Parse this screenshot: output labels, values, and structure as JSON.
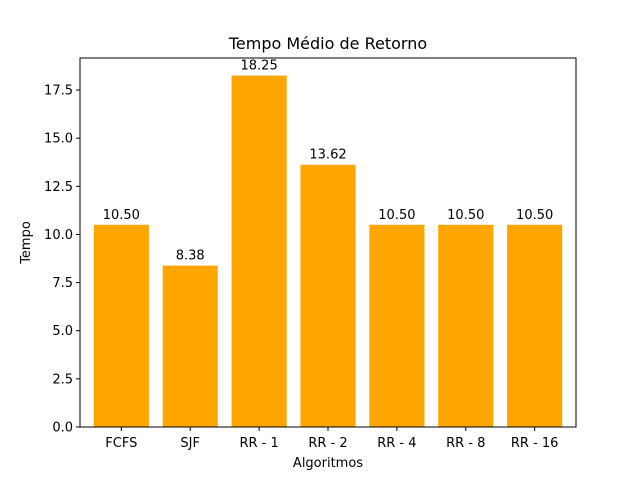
{
  "chart_data": {
    "type": "bar",
    "title": "Tempo Médio de Retorno",
    "xlabel": "Algoritmos",
    "ylabel": "Tempo",
    "categories": [
      "FCFS",
      "SJF",
      "RR - 1",
      "RR - 2",
      "RR - 4",
      "RR - 8",
      "RR - 16"
    ],
    "values": [
      10.5,
      8.38,
      18.25,
      13.62,
      10.5,
      10.5,
      10.5
    ],
    "data_labels": [
      "10.50",
      "8.38",
      "18.25",
      "13.62",
      "10.50",
      "10.50",
      "10.50"
    ],
    "yticks": [
      "0.0",
      "2.5",
      "5.0",
      "7.5",
      "10.0",
      "12.5",
      "15.0",
      "17.5"
    ],
    "ytick_values": [
      0,
      2.5,
      5,
      7.5,
      10,
      12.5,
      15,
      17.5
    ],
    "ylim": [
      0,
      19.1625
    ],
    "grid": false,
    "bar_color": "#ffa500"
  }
}
